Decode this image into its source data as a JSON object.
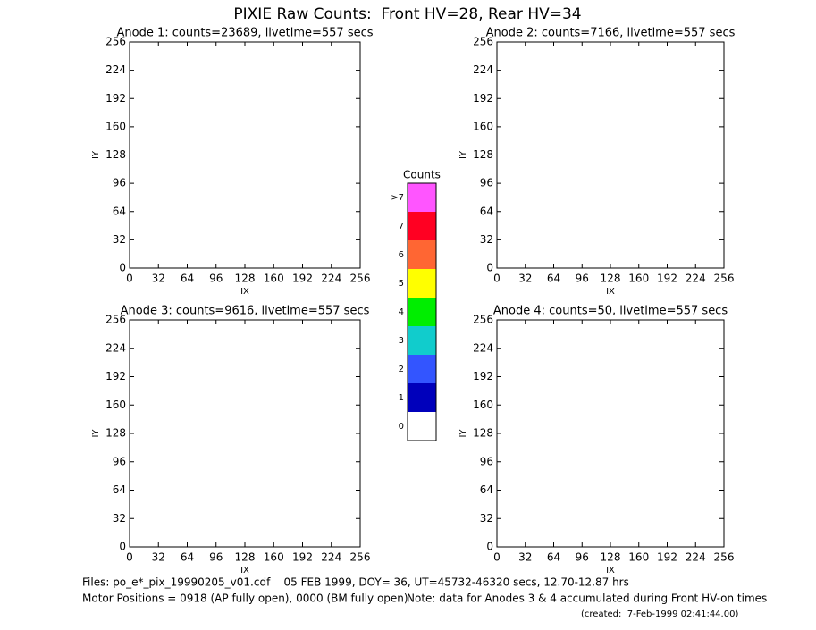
{
  "title": "PIXIE Raw Counts:  Front HV=28, Rear HV=34",
  "chart_data": [
    {
      "type": "heatmap",
      "title": "Anode 1: counts=23689, livetime=557 secs",
      "xlabel": "IX",
      "ylabel": "IY",
      "xlim": [
        0,
        256
      ],
      "ylim": [
        0,
        256
      ],
      "xticks": [
        0,
        32,
        64,
        96,
        128,
        160,
        192,
        224,
        256
      ],
      "yticks": [
        0,
        32,
        64,
        96,
        128,
        160,
        192,
        224,
        256
      ]
    },
    {
      "type": "heatmap",
      "title": "Anode 2: counts=7166, livetime=557 secs",
      "xlabel": "IX",
      "ylabel": "IY",
      "xlim": [
        0,
        256
      ],
      "ylim": [
        0,
        256
      ],
      "xticks": [
        0,
        32,
        64,
        96,
        128,
        160,
        192,
        224,
        256
      ],
      "yticks": [
        0,
        32,
        64,
        96,
        128,
        160,
        192,
        224,
        256
      ]
    },
    {
      "type": "heatmap",
      "title": "Anode 3: counts=9616, livetime=557 secs",
      "xlabel": "IX",
      "ylabel": "IY",
      "xlim": [
        0,
        256
      ],
      "ylim": [
        0,
        256
      ],
      "xticks": [
        0,
        32,
        64,
        96,
        128,
        160,
        192,
        224,
        256
      ],
      "yticks": [
        0,
        32,
        64,
        96,
        128,
        160,
        192,
        224,
        256
      ]
    },
    {
      "type": "heatmap",
      "title": "Anode 4: counts=50, livetime=557 secs",
      "xlabel": "IX",
      "ylabel": "IY",
      "xlim": [
        0,
        256
      ],
      "ylim": [
        0,
        256
      ],
      "xticks": [
        0,
        32,
        64,
        96,
        128,
        160,
        192,
        224,
        256
      ],
      "yticks": [
        0,
        32,
        64,
        96,
        128,
        160,
        192,
        224,
        256
      ]
    },
    {
      "type": "colorbar",
      "title": "Counts",
      "categories": [
        "0",
        "1",
        "2",
        "3",
        "4",
        "5",
        "6",
        "7",
        ">7"
      ],
      "colors": [
        "#ffffff",
        "#0000bb",
        "#3355ff",
        "#11cccc",
        "#00ee00",
        "#ffff00",
        "#ff6633",
        "#ff0022",
        "#ff55ff"
      ]
    }
  ],
  "footer": {
    "files": "Files: po_e*_pix_19990205_v01.cdf    05 FEB 1999, DOY= 36, UT=45732-46320 secs, 12.70-12.87 hrs",
    "motor": "Motor Positions = 0918 (AP fully open), 0000 (BM fully open)",
    "note": "Note: data for Anodes 3 & 4 accumulated during Front HV-on times",
    "created": "(created:  7-Feb-1999 02:41:44.00)"
  }
}
